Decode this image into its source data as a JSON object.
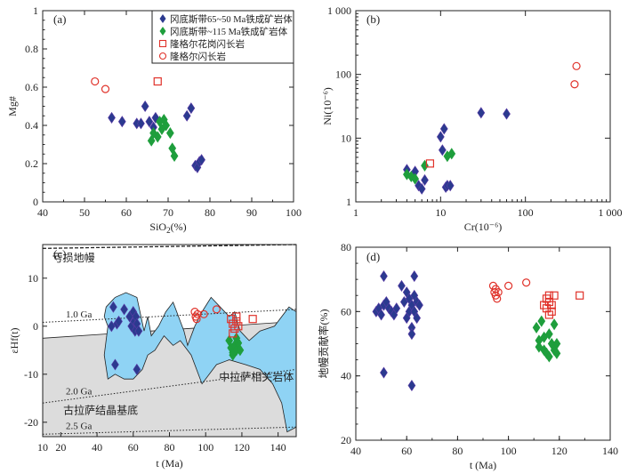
{
  "chart_data": [
    {
      "panel": "(a)",
      "type": "scatter",
      "xlabel": "SiO2(%)",
      "ylabel": "Mg#",
      "xlim": [
        40,
        100
      ],
      "ylim": [
        0,
        1.0
      ],
      "xticks": [
        40,
        50,
        60,
        70,
        80,
        90,
        100
      ],
      "yticks": [
        0,
        0.2,
        0.4,
        0.6,
        0.8,
        1.0
      ],
      "legend": {
        "placement": "top-right",
        "entries": [
          "冈底斯带65~50 Ma铁成矿岩体",
          "冈底斯带~115 Ma铁成矿岩体",
          "隆格尔花岗闪长岩",
          "隆格尔闪长岩"
        ]
      },
      "series": [
        {
          "name": "冈底斯带65~50 Ma铁成矿岩体",
          "marker": "diamond",
          "color": "#2b3a8f",
          "x": [
            56.5,
            59,
            62.5,
            63.5,
            64.5,
            65.5,
            66.5,
            67,
            74.5,
            75.5,
            76.5,
            77,
            77.5,
            78
          ],
          "y": [
            0.44,
            0.42,
            0.41,
            0.41,
            0.5,
            0.42,
            0.39,
            0.44,
            0.45,
            0.49,
            0.19,
            0.18,
            0.21,
            0.22
          ]
        },
        {
          "name": "冈底斯带~115 Ma铁成矿岩体",
          "marker": "diamond",
          "color": "#1e9e3c",
          "x": [
            66,
            66.5,
            67.5,
            68,
            68.5,
            69,
            69.5,
            70.5,
            71,
            71.5
          ],
          "y": [
            0.32,
            0.36,
            0.34,
            0.42,
            0.38,
            0.43,
            0.4,
            0.36,
            0.28,
            0.24
          ]
        },
        {
          "name": "隆格尔花岗闪长岩",
          "marker": "square",
          "color": "#e0322a",
          "x": [
            67.5
          ],
          "y": [
            0.63
          ]
        },
        {
          "name": "隆格尔闪长岩",
          "marker": "circle",
          "color": "#e0322a",
          "x": [
            52.5,
            55
          ],
          "y": [
            0.63,
            0.59
          ]
        }
      ]
    },
    {
      "panel": "(b)",
      "type": "scatter",
      "xlabel": "Cr(10⁻⁶)",
      "ylabel": "Ni(10⁻⁶)",
      "xscale": "log",
      "yscale": "log",
      "xlim": [
        1,
        1000
      ],
      "ylim": [
        1,
        1000
      ],
      "xticklabels": [
        "1",
        "10",
        "100",
        "1 000"
      ],
      "yticklabels": [
        "1",
        "10",
        "100",
        "1 000"
      ],
      "series": [
        {
          "name": "冈底斯带65~50 Ma铁成矿岩体",
          "marker": "diamond",
          "color": "#2b3a8f",
          "x": [
            4,
            5,
            5.5,
            6,
            6.5,
            10,
            10.5,
            11,
            11.5,
            12,
            13,
            30,
            60
          ],
          "y": [
            3.2,
            3,
            1.8,
            1.6,
            2.2,
            10.5,
            6.5,
            14,
            1.7,
            1.8,
            1.8,
            25,
            24
          ]
        },
        {
          "name": "冈底斯带~115 Ma铁成矿岩体",
          "marker": "diamond",
          "color": "#1e9e3c",
          "x": [
            4,
            4.5,
            5,
            6.5,
            12,
            13.5
          ],
          "y": [
            2.7,
            2.5,
            2.3,
            3.7,
            5.2,
            5.7
          ]
        },
        {
          "name": "隆格尔花岗闪长岩",
          "marker": "square",
          "color": "#e0322a",
          "x": [
            7.5
          ],
          "y": [
            4
          ]
        },
        {
          "name": "隆格尔闪长岩",
          "marker": "circle",
          "color": "#e0322a",
          "x": [
            380,
            400
          ],
          "y": [
            70,
            135
          ]
        }
      ]
    },
    {
      "panel": "(c)",
      "type": "scatter",
      "xlabel": "t (Ma)",
      "ylabel": "εHf(t)",
      "xlim": [
        10,
        150
      ],
      "ylim": [
        -23,
        17
      ],
      "xticks": [
        10,
        20,
        40,
        60,
        80,
        100,
        120,
        140
      ],
      "yticks": [
        -20,
        -10,
        0,
        10
      ],
      "annotations": [
        "亏损地幔",
        "1.0 Ga",
        "2.0 Ga",
        "2.5 Ga",
        "古拉萨结晶基底",
        "中拉萨相关岩体"
      ],
      "series": [
        {
          "name": "冈底斯带65~50 Ma铁成矿岩体",
          "marker": "diamond",
          "color": "#2b3a8f",
          "x": [
            48,
            49,
            50,
            51,
            52,
            55,
            58,
            59,
            60,
            60.5,
            61,
            61.5,
            62,
            63,
            62
          ],
          "y": [
            0,
            4,
            -8,
            0.5,
            1,
            3.5,
            2,
            0,
            3,
            1,
            -1,
            2,
            0.5,
            -1,
            -9
          ]
        },
        {
          "name": "冈底斯带~115 Ma铁成矿岩体",
          "marker": "diamond",
          "color": "#1e9e3c",
          "x": [
            113,
            114,
            115,
            116,
            117,
            118,
            119,
            115,
            117
          ],
          "y": [
            -3,
            -4.5,
            -5.5,
            -4,
            -5,
            -3.5,
            -5,
            -6,
            -2.5
          ]
        },
        {
          "name": "隆格尔花岗闪长岩",
          "marker": "square",
          "color": "#e0322a",
          "x": [
            114,
            115,
            116,
            117,
            118,
            115,
            117,
            126
          ],
          "y": [
            1.5,
            0.5,
            -0.5,
            1,
            0,
            -1.5,
            2,
            1.5
          ]
        },
        {
          "name": "隆格尔闪长岩",
          "marker": "circle",
          "color": "#e0322a",
          "x": [
            94,
            94.5,
            95,
            95.5,
            99,
            106
          ],
          "y": [
            3,
            2,
            1.5,
            2.5,
            2.5,
            3.5
          ]
        }
      ]
    },
    {
      "panel": "(d)",
      "type": "scatter",
      "xlabel": "t (Ma)",
      "ylabel": "地幔贡献率(%)",
      "xlim": [
        40,
        140
      ],
      "ylim": [
        20,
        80
      ],
      "xticks": [
        40,
        60,
        80,
        100,
        120,
        140
      ],
      "yticks": [
        20,
        40,
        60,
        80
      ],
      "series": [
        {
          "name": "冈底斯带65~50 Ma铁成矿岩体",
          "marker": "diamond",
          "color": "#2b3a8f",
          "x": [
            48,
            49,
            50,
            51,
            52,
            53,
            54,
            55,
            56,
            58,
            59,
            60,
            60,
            61,
            61,
            62,
            62,
            62,
            63,
            63,
            63,
            64,
            64,
            65,
            51,
            51,
            62
          ],
          "y": [
            60,
            61,
            59,
            62,
            63,
            61,
            60,
            59,
            61,
            68,
            63,
            66,
            58,
            64,
            60,
            62,
            55,
            53,
            71,
            65,
            60,
            63,
            58,
            62,
            71,
            41,
            37
          ]
        },
        {
          "name": "冈底斯带~115 Ma铁成矿岩体",
          "marker": "diamond",
          "color": "#1e9e3c",
          "x": [
            111,
            112,
            112,
            113,
            114,
            114,
            115,
            116,
            116,
            117,
            118,
            118,
            119,
            119
          ],
          "y": [
            55,
            51,
            49,
            57,
            52,
            48,
            47,
            46,
            53,
            50,
            56,
            48,
            50,
            47
          ]
        },
        {
          "name": "隆格尔花岗闪长岩",
          "marker": "square",
          "color": "#e0322a",
          "x": [
            114,
            115,
            116,
            116,
            117,
            117,
            118,
            115,
            116,
            128
          ],
          "y": [
            62,
            64,
            65,
            59,
            62,
            60,
            65,
            61,
            63,
            65
          ]
        },
        {
          "name": "隆格尔闪长岩",
          "marker": "circle",
          "color": "#e0322a",
          "x": [
            94,
            94.5,
            95,
            95,
            95.5,
            96,
            100,
            107
          ],
          "y": [
            68,
            66,
            67,
            65,
            64,
            66,
            68,
            69
          ]
        }
      ]
    }
  ]
}
